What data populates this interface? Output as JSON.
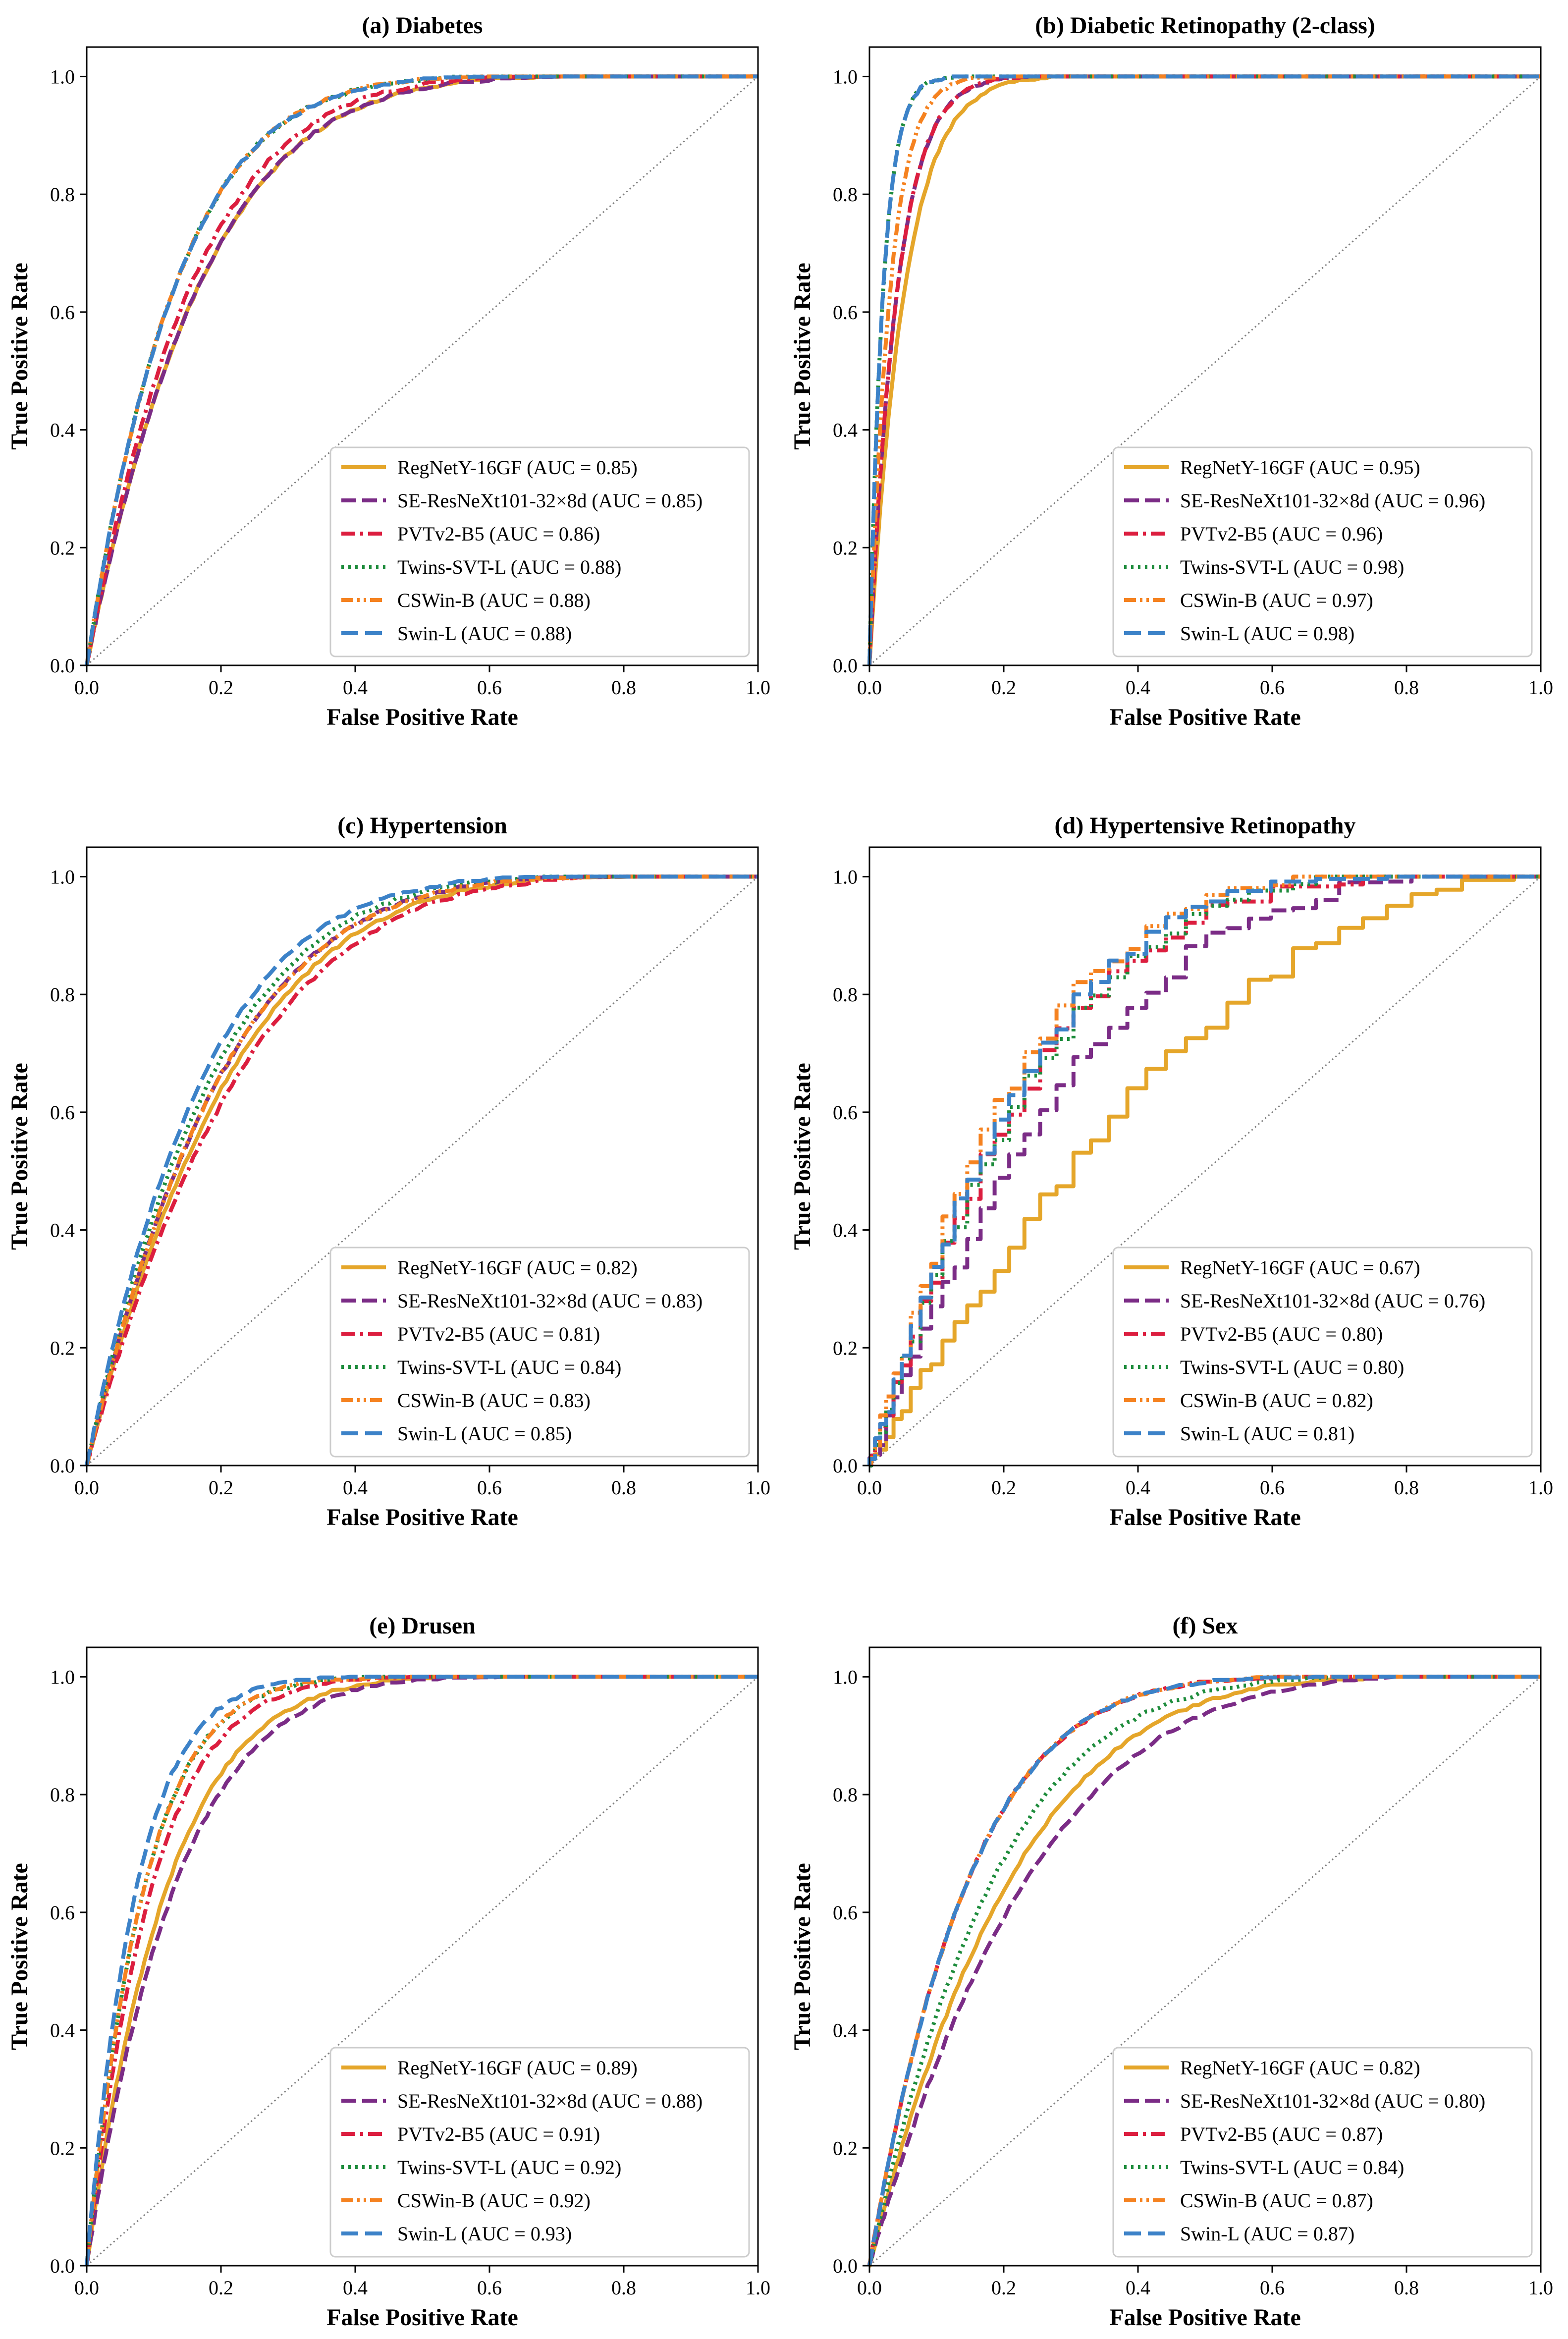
{
  "figure": {
    "series_colors": {
      "RegNetY-16GF": "#E5A62A",
      "SE-ResNeXt101-32×8d": "#7B2C86",
      "PVTv2-B5": "#DC1E3F",
      "Twins-SVT-L": "#1E8C3C",
      "CSWin-B": "#F58220",
      "Swin-L": "#3C82C8"
    }
  },
  "chart_data": [
    {
      "type": "line",
      "title": "(a) Diabetes",
      "xlabel": "False Positive Rate",
      "ylabel": "True Positive Rate",
      "xlim": [
        0,
        1
      ],
      "ylim": [
        0,
        1.05
      ],
      "xticks": [
        "0.0",
        "0.2",
        "0.4",
        "0.6",
        "0.8",
        "1.0"
      ],
      "yticks": [
        "0.0",
        "0.2",
        "0.4",
        "0.6",
        "0.8",
        "1.0"
      ],
      "legend_position": "lower-right",
      "series": [
        {
          "name": "RegNetY-16GF",
          "label": "RegNetY-16GF (AUC = 0.85)",
          "auc": 0.85
        },
        {
          "name": "SE-ResNeXt101-32×8d",
          "label": "SE-ResNeXt101-32×8d (AUC = 0.85)",
          "auc": 0.85
        },
        {
          "name": "PVTv2-B5",
          "label": "PVTv2-B5 (AUC = 0.86)",
          "auc": 0.86
        },
        {
          "name": "Twins-SVT-L",
          "label": "Twins-SVT-L (AUC = 0.88)",
          "auc": 0.88
        },
        {
          "name": "CSWin-B",
          "label": "CSWin-B (AUC = 0.88)",
          "auc": 0.88
        },
        {
          "name": "Swin-L",
          "label": "Swin-L (AUC = 0.88)",
          "auc": 0.88
        }
      ]
    },
    {
      "type": "line",
      "title": "(b) Diabetic Retinopathy (2-class)",
      "xlabel": "False Positive Rate",
      "ylabel": "True Positive Rate",
      "xlim": [
        0,
        1
      ],
      "ylim": [
        0,
        1.05
      ],
      "xticks": [
        "0.0",
        "0.2",
        "0.4",
        "0.6",
        "0.8",
        "1.0"
      ],
      "yticks": [
        "0.0",
        "0.2",
        "0.4",
        "0.6",
        "0.8",
        "1.0"
      ],
      "legend_position": "lower-right",
      "series": [
        {
          "name": "RegNetY-16GF",
          "label": "RegNetY-16GF (AUC = 0.95)",
          "auc": 0.95
        },
        {
          "name": "SE-ResNeXt101-32×8d",
          "label": "SE-ResNeXt101-32×8d (AUC = 0.96)",
          "auc": 0.96
        },
        {
          "name": "PVTv2-B5",
          "label": "PVTv2-B5 (AUC = 0.96)",
          "auc": 0.96
        },
        {
          "name": "Twins-SVT-L",
          "label": "Twins-SVT-L (AUC = 0.98)",
          "auc": 0.98
        },
        {
          "name": "CSWin-B",
          "label": "CSWin-B (AUC = 0.97)",
          "auc": 0.97
        },
        {
          "name": "Swin-L",
          "label": "Swin-L (AUC = 0.98)",
          "auc": 0.98
        }
      ]
    },
    {
      "type": "line",
      "title": "(c) Hypertension",
      "xlabel": "False Positive Rate",
      "ylabel": "True Positive Rate",
      "xlim": [
        0,
        1
      ],
      "ylim": [
        0,
        1.05
      ],
      "xticks": [
        "0.0",
        "0.2",
        "0.4",
        "0.6",
        "0.8",
        "1.0"
      ],
      "yticks": [
        "0.0",
        "0.2",
        "0.4",
        "0.6",
        "0.8",
        "1.0"
      ],
      "legend_position": "lower-right",
      "series": [
        {
          "name": "RegNetY-16GF",
          "label": "RegNetY-16GF (AUC = 0.82)",
          "auc": 0.82
        },
        {
          "name": "SE-ResNeXt101-32×8d",
          "label": "SE-ResNeXt101-32×8d (AUC = 0.83)",
          "auc": 0.83
        },
        {
          "name": "PVTv2-B5",
          "label": "PVTv2-B5 (AUC = 0.81)",
          "auc": 0.81
        },
        {
          "name": "Twins-SVT-L",
          "label": "Twins-SVT-L (AUC = 0.84)",
          "auc": 0.84
        },
        {
          "name": "CSWin-B",
          "label": "CSWin-B (AUC = 0.83)",
          "auc": 0.83
        },
        {
          "name": "Swin-L",
          "label": "Swin-L (AUC = 0.85)",
          "auc": 0.85
        }
      ]
    },
    {
      "type": "line",
      "title": "(d) Hypertensive Retinopathy",
      "xlabel": "False Positive Rate",
      "ylabel": "True Positive Rate",
      "xlim": [
        0,
        1
      ],
      "ylim": [
        0,
        1.05
      ],
      "xticks": [
        "0.0",
        "0.2",
        "0.4",
        "0.6",
        "0.8",
        "1.0"
      ],
      "yticks": [
        "0.0",
        "0.2",
        "0.4",
        "0.6",
        "0.8",
        "1.0"
      ],
      "legend_position": "lower-right",
      "series": [
        {
          "name": "RegNetY-16GF",
          "label": "RegNetY-16GF (AUC = 0.67)",
          "auc": 0.67
        },
        {
          "name": "SE-ResNeXt101-32×8d",
          "label": "SE-ResNeXt101-32×8d (AUC = 0.76)",
          "auc": 0.76
        },
        {
          "name": "PVTv2-B5",
          "label": "PVTv2-B5 (AUC = 0.80)",
          "auc": 0.8
        },
        {
          "name": "Twins-SVT-L",
          "label": "Twins-SVT-L (AUC = 0.80)",
          "auc": 0.8
        },
        {
          "name": "CSWin-B",
          "label": "CSWin-B (AUC = 0.82)",
          "auc": 0.82
        },
        {
          "name": "Swin-L",
          "label": "Swin-L (AUC = 0.81)",
          "auc": 0.81
        }
      ]
    },
    {
      "type": "line",
      "title": "(e) Drusen",
      "xlabel": "False Positive Rate",
      "ylabel": "True Positive Rate",
      "xlim": [
        0,
        1
      ],
      "ylim": [
        0,
        1.05
      ],
      "xticks": [
        "0.0",
        "0.2",
        "0.4",
        "0.6",
        "0.8",
        "1.0"
      ],
      "yticks": [
        "0.0",
        "0.2",
        "0.4",
        "0.6",
        "0.8",
        "1.0"
      ],
      "legend_position": "lower-right",
      "series": [
        {
          "name": "RegNetY-16GF",
          "label": "RegNetY-16GF (AUC = 0.89)",
          "auc": 0.89
        },
        {
          "name": "SE-ResNeXt101-32×8d",
          "label": "SE-ResNeXt101-32×8d (AUC = 0.88)",
          "auc": 0.88
        },
        {
          "name": "PVTv2-B5",
          "label": "PVTv2-B5 (AUC = 0.91)",
          "auc": 0.91
        },
        {
          "name": "Twins-SVT-L",
          "label": "Twins-SVT-L (AUC = 0.92)",
          "auc": 0.92
        },
        {
          "name": "CSWin-B",
          "label": "CSWin-B (AUC = 0.92)",
          "auc": 0.92
        },
        {
          "name": "Swin-L",
          "label": "Swin-L (AUC = 0.93)",
          "auc": 0.93
        }
      ]
    },
    {
      "type": "line",
      "title": "(f) Sex",
      "xlabel": "False Positive Rate",
      "ylabel": "True Positive Rate",
      "xlim": [
        0,
        1
      ],
      "ylim": [
        0,
        1.05
      ],
      "xticks": [
        "0.0",
        "0.2",
        "0.4",
        "0.6",
        "0.8",
        "1.0"
      ],
      "yticks": [
        "0.0",
        "0.2",
        "0.4",
        "0.6",
        "0.8",
        "1.0"
      ],
      "legend_position": "lower-right",
      "series": [
        {
          "name": "RegNetY-16GF",
          "label": "RegNetY-16GF (AUC = 0.82)",
          "auc": 0.82
        },
        {
          "name": "SE-ResNeXt101-32×8d",
          "label": "SE-ResNeXt101-32×8d (AUC = 0.80)",
          "auc": 0.8
        },
        {
          "name": "PVTv2-B5",
          "label": "PVTv2-B5 (AUC = 0.87)",
          "auc": 0.87
        },
        {
          "name": "Twins-SVT-L",
          "label": "Twins-SVT-L (AUC = 0.84)",
          "auc": 0.84
        },
        {
          "name": "CSWin-B",
          "label": "CSWin-B (AUC = 0.87)",
          "auc": 0.87
        },
        {
          "name": "Swin-L",
          "label": "Swin-L (AUC = 0.87)",
          "auc": 0.87
        }
      ]
    }
  ]
}
